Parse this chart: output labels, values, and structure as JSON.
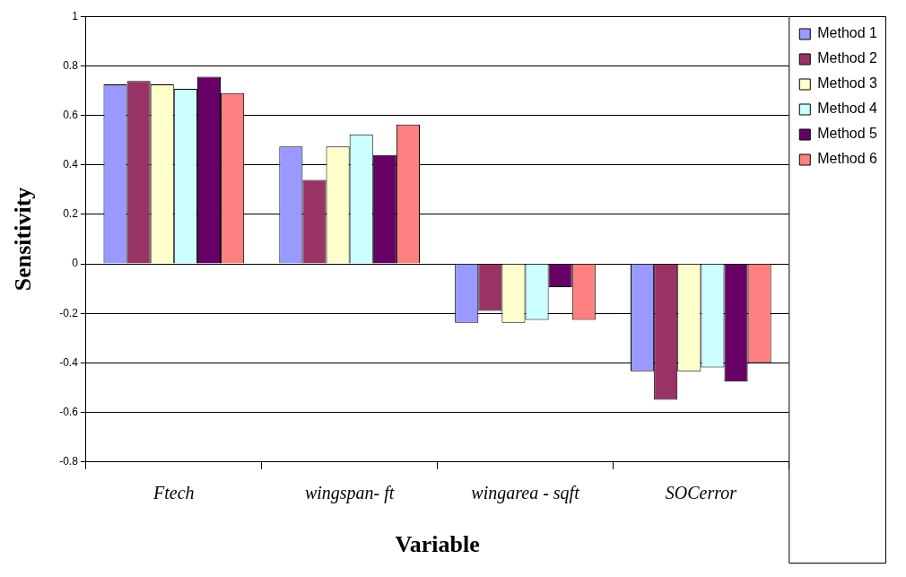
{
  "chart_data": {
    "type": "bar",
    "xlabel": "Variable",
    "ylabel": "Sensitivity",
    "categories": [
      "Ftech",
      "wingspan- ft",
      "wingarea - sqft",
      "SOCerror"
    ],
    "series": [
      {
        "name": "Method 1",
        "color": "#9999ff",
        "values": [
          0.725,
          0.474,
          -0.238,
          -0.434
        ]
      },
      {
        "name": "Method 2",
        "color": "#993366",
        "values": [
          0.739,
          0.339,
          -0.19,
          -0.549
        ]
      },
      {
        "name": "Method 3",
        "color": "#ffffcc",
        "values": [
          0.725,
          0.474,
          -0.238,
          -0.434
        ]
      },
      {
        "name": "Method 4",
        "color": "#ccffff",
        "values": [
          0.707,
          0.523,
          -0.226,
          -0.418
        ]
      },
      {
        "name": "Method 5",
        "color": "#660066",
        "values": [
          0.756,
          0.44,
          -0.094,
          -0.475
        ]
      },
      {
        "name": "Method 6",
        "color": "#ff8080",
        "values": [
          0.69,
          0.563,
          -0.226,
          -0.4
        ]
      }
    ],
    "ylim": [
      -0.8,
      1
    ],
    "yticks": [
      -0.8,
      -0.6,
      -0.4,
      -0.2,
      0,
      0.2,
      0.4,
      0.6,
      0.8,
      1
    ],
    "grid": "y",
    "legend": "right"
  }
}
